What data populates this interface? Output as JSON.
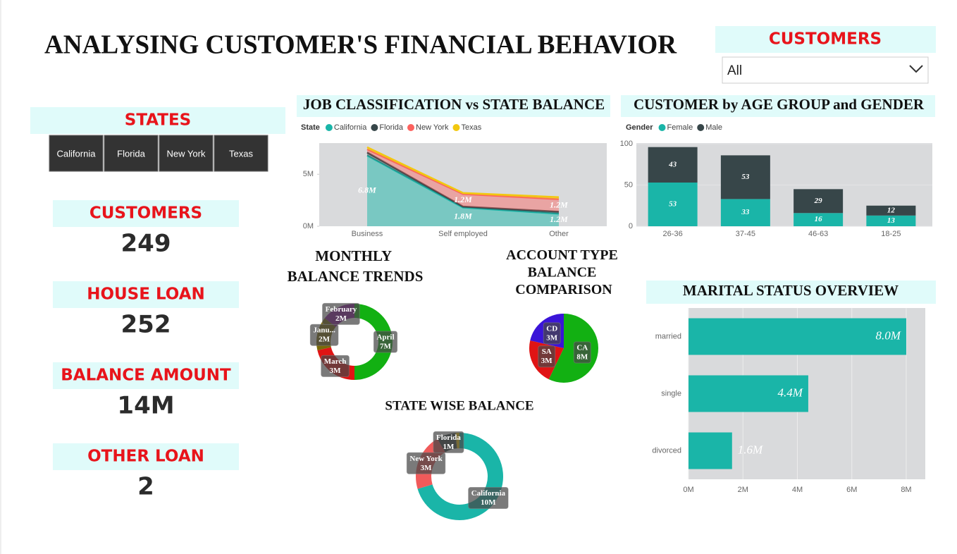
{
  "header": {
    "title": "ANALYSING CUSTOMER'S FINANCIAL BEHAVIOR"
  },
  "customer_slicer": {
    "title": "CUSTOMERS",
    "value": "All"
  },
  "states": {
    "title": "STATES",
    "items": [
      "California",
      "Florida",
      "New York",
      "Texas"
    ]
  },
  "kpis": [
    {
      "label": "CUSTOMERS",
      "value": 249
    },
    {
      "label": "HOUSE LOAN",
      "value": 252
    },
    {
      "label": "BALANCE AMOUNT",
      "value": "14M"
    },
    {
      "label": "OTHER LOAN",
      "value": 2
    }
  ],
  "chart_data": [
    {
      "type": "area",
      "title": "JOB CLASSIFICATION vs STATE BALANCE",
      "legend_title": "State",
      "categories": [
        "Business",
        "Self employed",
        "Other"
      ],
      "series": [
        {
          "name": "California",
          "color": "#1ab5a8",
          "values": [
            6800000,
            1800000,
            1200000
          ],
          "value_labels": [
            "6.8M",
            "1.8M",
            "1.2M"
          ]
        },
        {
          "name": "Florida",
          "color": "#374649",
          "values": [
            300000,
            100000,
            200000
          ]
        },
        {
          "name": "New York",
          "color": "#fd625e",
          "values": [
            300000,
            1200000,
            1200000
          ],
          "value_labels": [
            null,
            "1.2M",
            "1.2M"
          ]
        },
        {
          "name": "Texas",
          "color": "#f2c80f",
          "values": [
            200000,
            100000,
            200000
          ]
        }
      ],
      "ylim": [
        0,
        8000000
      ],
      "yticks": [
        {
          "value": 0,
          "label": "0M"
        },
        {
          "value": 5000000,
          "label": "5M"
        }
      ]
    },
    {
      "type": "stacked_bar",
      "title": "CUSTOMER by AGE GROUP and GENDER",
      "legend_title": "Gender",
      "categories": [
        "26-36",
        "37-45",
        "46-63",
        "18-25"
      ],
      "series": [
        {
          "name": "Female",
          "color": "#1ab5a8",
          "values": [
            53,
            33,
            16,
            13
          ]
        },
        {
          "name": "Male",
          "color": "#374649",
          "values": [
            43,
            53,
            29,
            12
          ]
        }
      ],
      "ylim": [
        0,
        100
      ],
      "yticks": [
        0,
        50,
        100
      ]
    },
    {
      "type": "donut",
      "title": "MONTHLY BALANCE TRENDS",
      "categories": [
        "April",
        "March",
        "Janu...",
        "February"
      ],
      "values": [
        7,
        3,
        2,
        2
      ],
      "value_labels": [
        "7M",
        "3M",
        "2M",
        "2M"
      ],
      "colors": [
        "#12b012",
        "#e01414",
        "#7a6a08",
        "#8e1a9e"
      ]
    },
    {
      "type": "pie",
      "title": "ACCOUNT TYPE BALANCE COMPARISON",
      "categories": [
        "CA",
        "SA",
        "CD"
      ],
      "values": [
        8,
        3,
        3
      ],
      "value_labels": [
        "8M",
        "3M",
        "3M"
      ],
      "colors": [
        "#12b012",
        "#e01414",
        "#3a14d8"
      ]
    },
    {
      "type": "donut",
      "title": "STATE WISE BALANCE",
      "categories": [
        "California",
        "New York",
        "Florida",
        null
      ],
      "values": [
        10,
        3,
        1,
        0.2
      ],
      "value_labels": [
        "10M",
        "3M",
        "1M",
        null
      ],
      "colors": [
        "#1ab5a8",
        "#f05a5a",
        "#3a4447",
        "#f2c80f"
      ]
    },
    {
      "type": "hbar",
      "title": "MARITAL STATUS OVERVIEW",
      "categories": [
        "married",
        "single",
        "divorced"
      ],
      "values": [
        8000000,
        4400000,
        1600000
      ],
      "value_labels": [
        "8.0M",
        "4.4M",
        "1.6M"
      ],
      "color": "#1ab5a8",
      "xlim": [
        0,
        8700000
      ],
      "xticks": [
        {
          "value": 0,
          "label": "0M"
        },
        {
          "value": 2000000,
          "label": "2M"
        },
        {
          "value": 4000000,
          "label": "4M"
        },
        {
          "value": 6000000,
          "label": "6M"
        },
        {
          "value": 8000000,
          "label": "8M"
        }
      ],
      "grid": true
    }
  ]
}
